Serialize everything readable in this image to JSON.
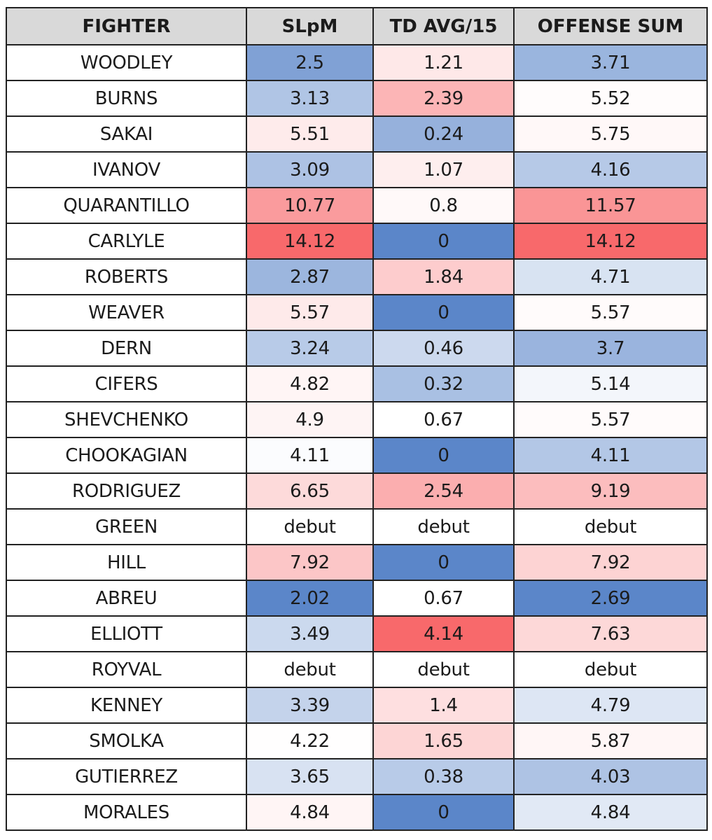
{
  "chart_data": {
    "type": "table",
    "columns": [
      "FIGHTER",
      "SLpM",
      "TD AVG/15",
      "OFFENSE SUM"
    ],
    "rows": [
      [
        "WOODLEY",
        "2.5",
        "1.21",
        "3.71"
      ],
      [
        "BURNS",
        "3.13",
        "2.39",
        "5.52"
      ],
      [
        "SAKAI",
        "5.51",
        "0.24",
        "5.75"
      ],
      [
        "IVANOV",
        "3.09",
        "1.07",
        "4.16"
      ],
      [
        "QUARANTILLO",
        "10.77",
        "0.8",
        "11.57"
      ],
      [
        "CARLYLE",
        "14.12",
        "0",
        "14.12"
      ],
      [
        "ROBERTS",
        "2.87",
        "1.84",
        "4.71"
      ],
      [
        "WEAVER",
        "5.57",
        "0",
        "5.57"
      ],
      [
        "DERN",
        "3.24",
        "0.46",
        "3.7"
      ],
      [
        "CIFERS",
        "4.82",
        "0.32",
        "5.14"
      ],
      [
        "SHEVCHENKO",
        "4.9",
        "0.67",
        "5.57"
      ],
      [
        "CHOOKAGIAN",
        "4.11",
        "0",
        "4.11"
      ],
      [
        "RODRIGUEZ",
        "6.65",
        "2.54",
        "9.19"
      ],
      [
        "GREEN",
        "debut",
        "debut",
        "debut"
      ],
      [
        "HILL",
        "7.92",
        "0",
        "7.92"
      ],
      [
        "ABREU",
        "2.02",
        "0.67",
        "2.69"
      ],
      [
        "ELLIOTT",
        "3.49",
        "4.14",
        "7.63"
      ],
      [
        "ROYVAL",
        "debut",
        "debut",
        "debut"
      ],
      [
        "KENNEY",
        "3.39",
        "1.4",
        "4.79"
      ],
      [
        "SMOLKA",
        "4.22",
        "1.65",
        "5.87"
      ],
      [
        "GUTIERREZ",
        "3.65",
        "0.38",
        "4.03"
      ],
      [
        "MORALES",
        "4.84",
        "0",
        "4.84"
      ]
    ],
    "color_scale": {
      "low": "#5b86c9",
      "mid": "#ffffff",
      "high": "#f8696b"
    }
  },
  "colors": {
    "header_background": "#d9d9d9",
    "border": "#222222",
    "text": "#1b1b1b"
  }
}
